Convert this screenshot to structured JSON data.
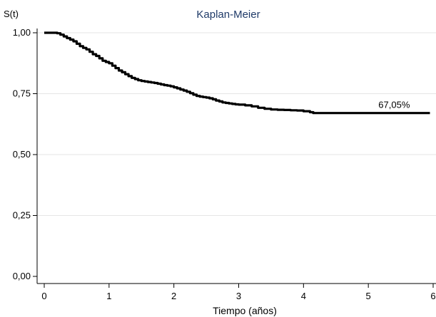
{
  "chart_data": {
    "type": "line",
    "title": "Kaplan-Meier",
    "ylabel": "S(t)",
    "xlabel": "Tiempo (años)",
    "xlim": [
      0,
      6
    ],
    "ylim": [
      0,
      1
    ],
    "xticks": [
      0,
      1,
      2,
      3,
      4,
      5,
      6
    ],
    "xtick_labels": [
      "0",
      "1",
      "2",
      "3",
      "4",
      "5",
      "6"
    ],
    "yticks": [
      0,
      0.25,
      0.5,
      0.75,
      1.0
    ],
    "ytick_labels": [
      "0,00",
      "0,25",
      "0,50",
      "0,75",
      "1,00"
    ],
    "grid": "horizontal",
    "line_color": "#000000",
    "series": [
      {
        "x": [
          0,
          0.05,
          0.1,
          0.15,
          0.2,
          0.25,
          0.3,
          0.35,
          0.4,
          0.45,
          0.5,
          0.55,
          0.6,
          0.65,
          0.7,
          0.75,
          0.8,
          0.85,
          0.9,
          0.95,
          1.0,
          1.05,
          1.1,
          1.15,
          1.2,
          1.25,
          1.3,
          1.35,
          1.4,
          1.45,
          1.5,
          1.55,
          1.6,
          1.65,
          1.7,
          1.75,
          1.8,
          1.85,
          1.9,
          1.95,
          2.0,
          2.05,
          2.1,
          2.15,
          2.2,
          2.25,
          2.3,
          2.35,
          2.4,
          2.45,
          2.5,
          2.55,
          2.6,
          2.65,
          2.7,
          2.75,
          2.8,
          2.85,
          2.9,
          2.95,
          3.0,
          3.1,
          3.2,
          3.3,
          3.4,
          3.5,
          3.6,
          3.7,
          3.8,
          3.9,
          4.0,
          4.1,
          4.15,
          4.2,
          4.5,
          5.0,
          5.5,
          5.95
        ],
        "values": [
          1.0,
          1.0,
          1.0,
          1.0,
          0.998,
          0.992,
          0.985,
          0.978,
          0.972,
          0.965,
          0.955,
          0.945,
          0.938,
          0.932,
          0.922,
          0.912,
          0.905,
          0.895,
          0.885,
          0.88,
          0.875,
          0.865,
          0.855,
          0.845,
          0.838,
          0.83,
          0.822,
          0.815,
          0.81,
          0.805,
          0.802,
          0.8,
          0.798,
          0.796,
          0.794,
          0.791,
          0.788,
          0.785,
          0.783,
          0.78,
          0.776,
          0.772,
          0.767,
          0.763,
          0.758,
          0.752,
          0.746,
          0.741,
          0.738,
          0.736,
          0.734,
          0.731,
          0.727,
          0.722,
          0.718,
          0.714,
          0.712,
          0.71,
          0.708,
          0.706,
          0.705,
          0.702,
          0.698,
          0.692,
          0.688,
          0.685,
          0.684,
          0.683,
          0.682,
          0.681,
          0.678,
          0.674,
          0.6705,
          0.6705,
          0.6705,
          0.6705,
          0.6705,
          0.6705
        ]
      }
    ],
    "annotation": {
      "text": "67,05%",
      "x": 5.2,
      "y": 0.6705
    }
  }
}
